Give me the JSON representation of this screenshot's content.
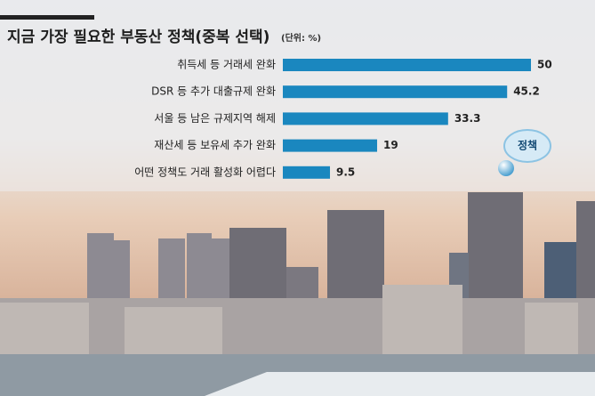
{
  "chart_data": {
    "type": "bar",
    "orientation": "horizontal",
    "title": "지금 가장 필요한 부동산 정책(중복 선택)",
    "unit": "(단위: %)",
    "badge": "정책",
    "categories": [
      "취득세 등 거래세 완화",
      "DSR 등 추가 대출규제 완화",
      "서울 등 남은 규제지역 해제",
      "재산세 등 보유세 추가 완화",
      "어떤 정책도 거래 활성화 어렵다"
    ],
    "values": [
      50,
      45.2,
      33.3,
      19,
      9.5
    ],
    "color": "#1a87bf"
  }
}
